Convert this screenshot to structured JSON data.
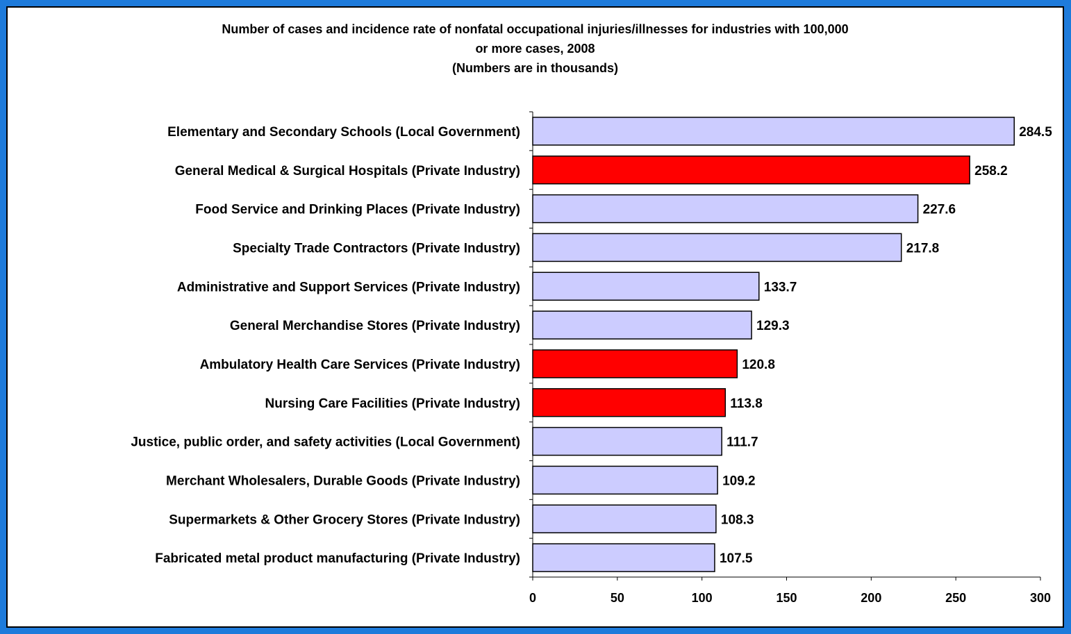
{
  "chart_data": {
    "type": "bar",
    "orientation": "horizontal",
    "title_lines": [
      "Number of cases and incidence rate of nonfatal occupational injuries/illnesses for industries with 100,000",
      "or more cases,  2008",
      "(Numbers are in thousands)"
    ],
    "xlabel": "",
    "ylabel": "",
    "xlim": [
      0,
      300
    ],
    "xticks": [
      0,
      50,
      100,
      150,
      200,
      250,
      300
    ],
    "grid": false,
    "legend": "none",
    "categories": [
      "Elementary and Secondary Schools (Local Government)",
      "General Medical & Surgical Hospitals (Private Industry)",
      "Food Service and Drinking Places (Private Industry)",
      "Specialty Trade Contractors (Private Industry)",
      "Administrative and Support Services (Private Industry)",
      "General Merchandise Stores (Private Industry)",
      "Ambulatory Health Care Services (Private Industry)",
      "Nursing Care Facilities (Private Industry)",
      "Justice, public order, and safety activities (Local Government)",
      "Merchant Wholesalers, Durable Goods (Private Industry)",
      "Supermarkets & Other Grocery Stores (Private Industry)",
      "Fabricated metal product manufacturing (Private Industry)"
    ],
    "values": [
      284.5,
      258.2,
      227.6,
      217.8,
      133.7,
      129.3,
      120.8,
      113.8,
      111.7,
      109.2,
      108.3,
      107.5
    ],
    "value_labels": [
      "284.5",
      "258.2",
      "227.6",
      "217.8",
      "133.7",
      "129.3",
      "120.8",
      "113.8",
      "111.7",
      "109.2",
      "108.3",
      "107.5"
    ],
    "highlighted": [
      false,
      true,
      false,
      false,
      false,
      false,
      true,
      true,
      false,
      false,
      false,
      false
    ],
    "colors": {
      "bar_default": "#CCCCFF",
      "bar_highlight": "#FF0000",
      "bar_outline": "#000000",
      "background": "#1E7BDB",
      "plot_background": "#FFFFFF"
    }
  }
}
